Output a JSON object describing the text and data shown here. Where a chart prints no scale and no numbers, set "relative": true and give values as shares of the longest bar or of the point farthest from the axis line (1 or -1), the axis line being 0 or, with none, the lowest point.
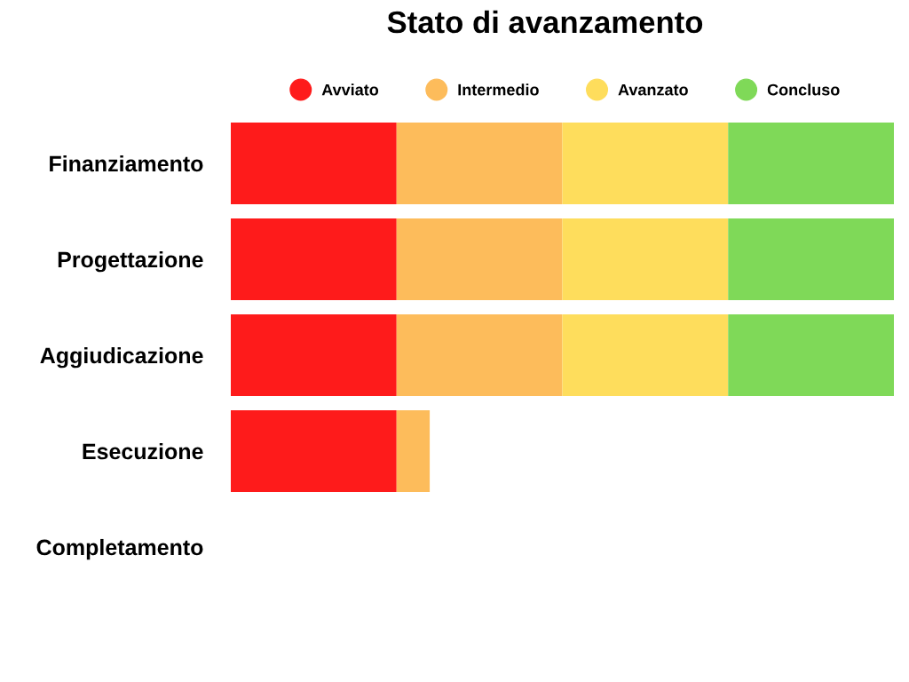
{
  "chart_data": {
    "type": "bar",
    "orientation": "horizontal",
    "stacked": true,
    "relative": true,
    "title": "Stato di avanzamento",
    "categories": [
      "Finanziamento",
      "Progettazione",
      "Aggiudicazione",
      "Esecuzione",
      "Completamento"
    ],
    "series": [
      {
        "name": "Avviato",
        "color": "#fe1b1b",
        "values": [
          0.25,
          0.25,
          0.25,
          0.25,
          null
        ]
      },
      {
        "name": "Intermedio",
        "color": "#fdbc5b",
        "values": [
          0.25,
          0.25,
          0.25,
          0.05,
          null
        ]
      },
      {
        "name": "Avanzato",
        "color": "#fedd5c",
        "values": [
          0.25,
          0.25,
          0.25,
          null,
          null
        ]
      },
      {
        "name": "Concluso",
        "color": "#7fd958",
        "values": [
          0.25,
          0.25,
          0.25,
          null,
          null
        ]
      }
    ],
    "legend": "top",
    "grid": false
  }
}
